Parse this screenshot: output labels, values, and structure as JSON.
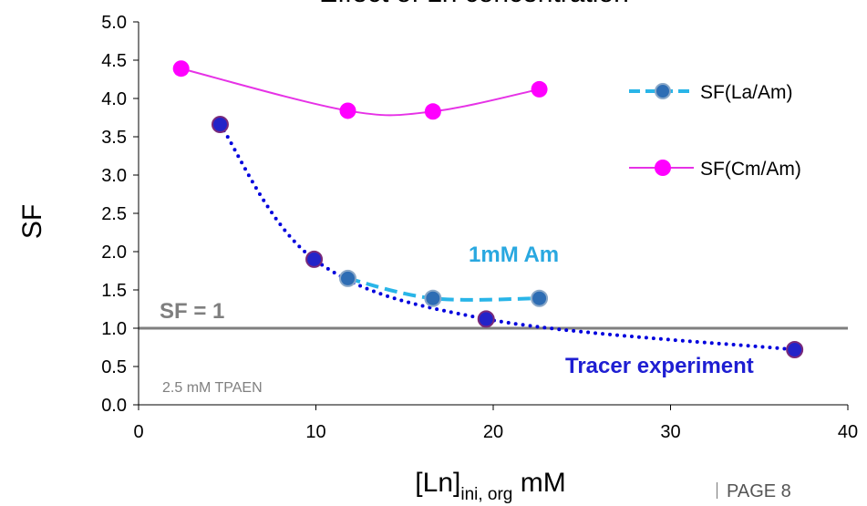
{
  "chart_data": {
    "type": "scatter",
    "title": "Effect of Ln concentration",
    "xlabel": "[Ln]",
    "xlabel_sub": "ini, org",
    "xlabel_unit": " mM",
    "ylabel": "SF",
    "xlim": [
      0,
      40
    ],
    "ylim": [
      0,
      5
    ],
    "x_ticks": [
      0,
      10,
      20,
      30,
      40
    ],
    "y_ticks": [
      "0.0",
      "0.5",
      "1.0",
      "1.5",
      "2.0",
      "2.5",
      "3.0",
      "3.5",
      "4.0",
      "4.5",
      "5.0"
    ],
    "legend_position": "right",
    "series": [
      {
        "name": "SF(La/Am)",
        "line_style": "dashed",
        "color": "#29B5E8",
        "marker_color": "#2E6DB4",
        "x": [
          11.8,
          16.6,
          22.6
        ],
        "y": [
          1.65,
          1.39,
          1.39
        ]
      },
      {
        "name": "SF(Cm/Am)",
        "line_style": "solid",
        "color": "#E632E6",
        "marker_color": "#FF00FF",
        "x": [
          2.4,
          11.8,
          16.6,
          22.6
        ],
        "y": [
          4.39,
          3.84,
          3.83,
          4.12
        ]
      },
      {
        "name": "",
        "line_style": "dotted",
        "color": "#0000DD",
        "marker_color": "#2323C8",
        "x": [
          4.6,
          9.9,
          19.6,
          37.0
        ],
        "y": [
          3.66,
          1.9,
          1.12,
          0.72
        ]
      }
    ],
    "reference_line": {
      "y": 1.0,
      "label": "SF = 1",
      "color": "#7F7F7F"
    },
    "annotations": [
      {
        "text": "1mM Am",
        "color": "#29A8E0"
      },
      {
        "text": "Tracer experiment",
        "color": "#1E1ED2"
      },
      {
        "text": "2.5 mM TPAEN",
        "color": "#808080"
      }
    ]
  },
  "footer": {
    "page_label": "PAGE 8"
  }
}
